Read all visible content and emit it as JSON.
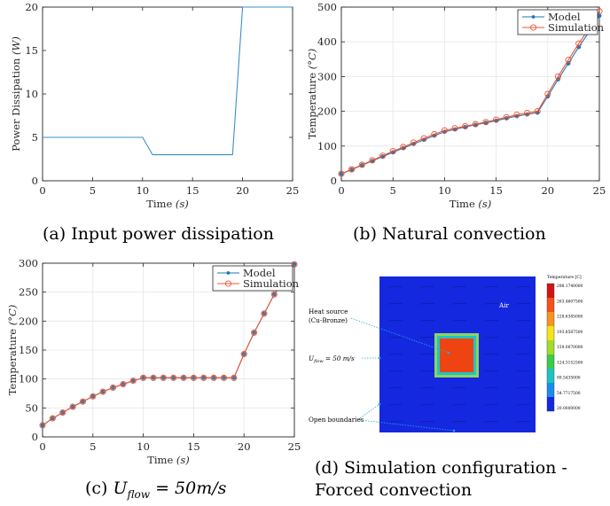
{
  "chart_data": [
    {
      "type": "line",
      "xlabel": "Time",
      "xunit": "(s)",
      "ylabel": "Power Dissipation",
      "yunit": "(W)",
      "xlim": [
        0,
        25
      ],
      "ylim": [
        0,
        20
      ],
      "xticks": [
        "0",
        "5",
        "10",
        "15",
        "20",
        "25"
      ],
      "yticks": [
        "0",
        "5",
        "10",
        "15",
        "20"
      ],
      "grid": false,
      "series": [
        {
          "x": [
            0,
            10,
            11,
            19,
            20,
            25
          ],
          "values": [
            5,
            5,
            3,
            3,
            20,
            20
          ]
        }
      ]
    },
    {
      "type": "line",
      "xlabel": "Time",
      "xunit": "(s)",
      "ylabel": "Temperature",
      "yunit": "(°C)",
      "xlim": [
        0,
        25
      ],
      "ylim": [
        0,
        500
      ],
      "xticks": [
        "0",
        "5",
        "10",
        "15",
        "20",
        "25"
      ],
      "yticks": [
        "0",
        "100",
        "200",
        "300",
        "400",
        "500"
      ],
      "grid": true,
      "legend_position": "top-right",
      "x": [
        0,
        1,
        2,
        3,
        4,
        5,
        6,
        7,
        8,
        9,
        10,
        11,
        12,
        13,
        14,
        15,
        16,
        17,
        18,
        19,
        20,
        21,
        22,
        23,
        24,
        25
      ],
      "series": [
        {
          "name": "Model",
          "values": [
            20,
            32,
            45,
            57,
            70,
            82,
            94,
            106,
            118,
            130,
            141,
            148,
            155,
            161,
            167,
            173,
            180,
            186,
            191,
            196,
            243,
            292,
            338,
            385,
            428,
            475
          ]
        },
        {
          "name": "Simulation",
          "values": [
            20,
            33,
            46,
            59,
            72,
            85,
            97,
            110,
            122,
            134,
            145,
            151,
            157,
            163,
            169,
            176,
            183,
            190,
            195,
            200,
            250,
            300,
            348,
            395,
            438,
            488
          ]
        }
      ]
    },
    {
      "type": "line",
      "xlabel": "Time",
      "xunit": "(s)",
      "ylabel": "Temperature",
      "yunit": "(°C)",
      "xlim": [
        0,
        25
      ],
      "ylim": [
        0,
        300
      ],
      "xticks": [
        "0",
        "5",
        "10",
        "15",
        "20",
        "25"
      ],
      "yticks": [
        "0",
        "50",
        "100",
        "150",
        "200",
        "250",
        "300"
      ],
      "grid": true,
      "legend_position": "top-right",
      "x": [
        0,
        1,
        2,
        3,
        4,
        5,
        6,
        7,
        8,
        9,
        10,
        11,
        12,
        13,
        14,
        15,
        16,
        17,
        18,
        19,
        20,
        21,
        22,
        23,
        24,
        25
      ],
      "series": [
        {
          "name": "Model",
          "values": [
            20,
            32,
            42,
            52,
            61,
            70,
            78,
            85,
            91,
            97,
            102,
            102,
            102,
            102,
            102,
            102,
            102,
            102,
            102,
            102,
            143,
            180,
            213,
            246,
            272,
            298
          ]
        },
        {
          "name": "Simulation",
          "values": [
            20,
            32,
            42,
            52,
            61,
            70,
            78,
            85,
            91,
            97,
            102,
            102,
            102,
            102,
            102,
            102,
            102,
            102,
            102,
            102,
            143,
            180,
            213,
            246,
            272,
            298
          ]
        }
      ]
    },
    {
      "type": "heatmap",
      "colorbar_title": "Temperature [C]",
      "colorbar_ticks": [
        "298.1740000",
        "263.4607500",
        "228.6385000",
        "193.8587500",
        "159.0670000",
        "124.3152500",
        "89.5435000",
        "54.7717500",
        "20.0000000"
      ],
      "annotations": [
        "Air",
        "Heat source",
        "(Cu-Bronze)",
        "= 50 m/s",
        "Open boundaries"
      ],
      "flow_var": "U",
      "flow_sub": "flow"
    }
  ],
  "captions": {
    "a": "(a) Input power dissipation",
    "b": "(b) Natural convection",
    "c_prefix": "(c)",
    "c_var": "U",
    "c_sub": "flow",
    "c_value": "= 50m/s",
    "d_line1": "(d)  Simulation  configuration  -",
    "d_line2": "Forced convection"
  },
  "colors": {
    "model": "#1f77b4",
    "simulation": "#ee5533",
    "power": "#3b8fc9",
    "heat_outer": "#8fd45a",
    "heat_ring": "#21c4c4",
    "heat_core": "#ee4411",
    "domain": "#1428e0"
  }
}
